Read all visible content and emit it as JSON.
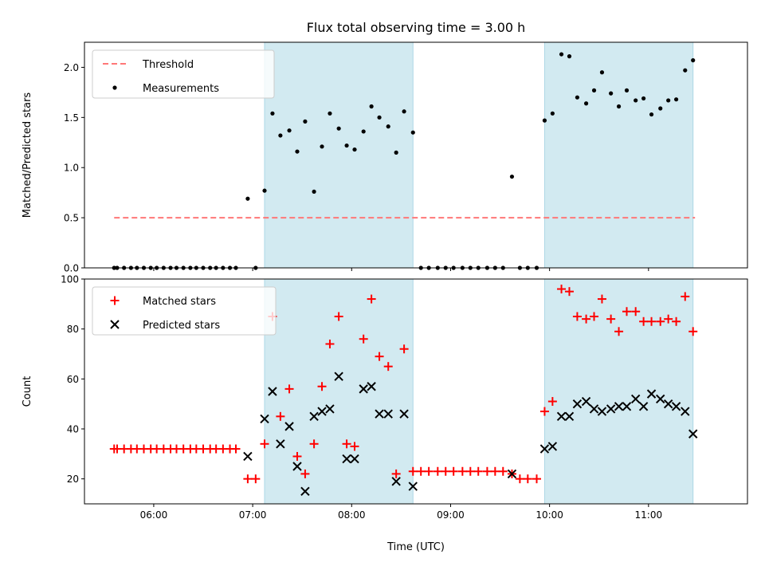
{
  "title": "Flux total observing time = 3.00 h",
  "x_ticks": [
    {
      "label": "06:00",
      "value": 6.0
    },
    {
      "label": "07:00",
      "value": 7.0
    },
    {
      "label": "08:00",
      "value": 8.0
    },
    {
      "label": "09:00",
      "value": 9.0
    },
    {
      "label": "10:00",
      "value": 10.0
    },
    {
      "label": "11:00",
      "value": 11.0
    }
  ],
  "xlabel": "Time (UTC)",
  "chart_data": [
    {
      "type": "scatter",
      "ylabel": "Matched/Predicted stars",
      "xlim": [
        5.3,
        12.0
      ],
      "ylim": [
        0,
        2.25
      ],
      "yticks": [
        "0.0",
        "0.5",
        "1.0",
        "1.5",
        "2.0"
      ],
      "shaded_regions": [
        [
          7.12,
          8.62
        ],
        [
          9.95,
          11.45
        ]
      ],
      "shade_color": "#add8e6",
      "legend": {
        "placement": "top-left",
        "entries": [
          "Threshold",
          "Measurements"
        ]
      },
      "series": [
        {
          "name": "Threshold",
          "style": "dashed-line",
          "color": "#ff7777",
          "x": [
            5.6,
            11.47
          ],
          "y": [
            0.5,
            0.5
          ]
        },
        {
          "name": "Measurements",
          "style": "dot",
          "color": "#000000",
          "x": [
            5.6,
            5.63,
            5.7,
            5.77,
            5.83,
            5.9,
            5.97,
            6.03,
            6.1,
            6.17,
            6.23,
            6.3,
            6.37,
            6.43,
            6.5,
            6.57,
            6.63,
            6.7,
            6.77,
            6.83,
            6.95,
            7.03,
            7.12,
            7.2,
            7.28,
            7.37,
            7.45,
            7.53,
            7.62,
            7.7,
            7.78,
            7.87,
            7.95,
            8.03,
            8.12,
            8.2,
            8.28,
            8.37,
            8.45,
            8.53,
            8.62,
            8.7,
            8.78,
            8.87,
            8.95,
            9.03,
            9.12,
            9.2,
            9.28,
            9.37,
            9.45,
            9.53,
            9.62,
            9.7,
            9.78,
            9.87,
            9.95,
            10.03,
            10.12,
            10.2,
            10.28,
            10.37,
            10.45,
            10.53,
            10.62,
            10.7,
            10.78,
            10.87,
            10.95,
            11.03,
            11.12,
            11.2,
            11.28,
            11.37,
            11.45
          ],
          "y": [
            0,
            0,
            0,
            0,
            0,
            0,
            0,
            0,
            0,
            0,
            0,
            0,
            0,
            0,
            0,
            0,
            0,
            0,
            0,
            0,
            0.69,
            0,
            0.77,
            1.54,
            1.32,
            1.37,
            1.16,
            1.46,
            0.76,
            1.21,
            1.54,
            1.39,
            1.22,
            1.18,
            1.36,
            1.61,
            1.5,
            1.41,
            1.15,
            1.56,
            1.35,
            0,
            0,
            0,
            0,
            0,
            0,
            0,
            0,
            0,
            0,
            0,
            0.91,
            0,
            0,
            0,
            1.47,
            1.54,
            2.13,
            2.11,
            1.7,
            1.64,
            1.77,
            1.95,
            1.74,
            1.61,
            1.77,
            1.67,
            1.69,
            1.53,
            1.59,
            1.67,
            1.68,
            1.97,
            2.07
          ]
        }
      ]
    },
    {
      "type": "scatter",
      "ylabel": "Count",
      "xlim": [
        5.3,
        12.0
      ],
      "ylim": [
        10,
        100
      ],
      "yticks": [
        "20",
        "40",
        "60",
        "80",
        "100"
      ],
      "shaded_regions": [
        [
          7.12,
          8.62
        ],
        [
          9.95,
          11.45
        ]
      ],
      "shade_color": "#add8e6",
      "legend": {
        "placement": "top-left",
        "entries": [
          "Matched stars",
          "Predicted stars"
        ]
      },
      "series": [
        {
          "name": "Matched stars",
          "style": "plus",
          "color": "#ff0000",
          "x": [
            5.6,
            5.63,
            5.7,
            5.77,
            5.83,
            5.9,
            5.97,
            6.03,
            6.1,
            6.17,
            6.23,
            6.3,
            6.37,
            6.43,
            6.5,
            6.57,
            6.63,
            6.7,
            6.77,
            6.83,
            6.95,
            7.03,
            7.12,
            7.2,
            7.28,
            7.37,
            7.45,
            7.53,
            7.62,
            7.7,
            7.78,
            7.87,
            7.95,
            8.03,
            8.12,
            8.2,
            8.28,
            8.37,
            8.45,
            8.53,
            8.62,
            8.7,
            8.78,
            8.87,
            8.95,
            9.03,
            9.12,
            9.2,
            9.28,
            9.37,
            9.45,
            9.53,
            9.62,
            9.7,
            9.78,
            9.87,
            9.95,
            10.03,
            10.12,
            10.2,
            10.28,
            10.37,
            10.45,
            10.53,
            10.62,
            10.7,
            10.78,
            10.87,
            10.95,
            11.03,
            11.12,
            11.2,
            11.28,
            11.37,
            11.45
          ],
          "y": [
            32,
            32,
            32,
            32,
            32,
            32,
            32,
            32,
            32,
            32,
            32,
            32,
            32,
            32,
            32,
            32,
            32,
            32,
            32,
            32,
            20,
            20,
            34,
            85,
            45,
            56,
            29,
            22,
            34,
            57,
            74,
            85,
            34,
            33,
            76,
            92,
            69,
            65,
            22,
            72,
            23,
            23,
            23,
            23,
            23,
            23,
            23,
            23,
            23,
            23,
            23,
            23,
            22,
            20,
            20,
            20,
            47,
            51,
            96,
            95,
            85,
            84,
            85,
            92,
            84,
            79,
            87,
            87,
            83,
            83,
            83,
            84,
            83,
            93,
            79
          ]
        },
        {
          "name": "Predicted stars",
          "style": "x",
          "color": "#000000",
          "x": [
            6.95,
            7.12,
            7.2,
            7.28,
            7.37,
            7.45,
            7.53,
            7.62,
            7.7,
            7.78,
            7.87,
            7.95,
            8.03,
            8.12,
            8.2,
            8.28,
            8.37,
            8.45,
            8.53,
            8.62,
            9.62,
            9.95,
            10.03,
            10.12,
            10.2,
            10.28,
            10.37,
            10.45,
            10.53,
            10.62,
            10.7,
            10.78,
            10.87,
            10.95,
            11.03,
            11.12,
            11.2,
            11.28,
            11.37,
            11.45
          ],
          "y": [
            29,
            44,
            55,
            34,
            41,
            25,
            15,
            45,
            47,
            48,
            61,
            28,
            28,
            56,
            57,
            46,
            46,
            19,
            46,
            17,
            22,
            32,
            33,
            45,
            45,
            50,
            51,
            48,
            47,
            48,
            49,
            49,
            52,
            49,
            54,
            52,
            50,
            49,
            47,
            38
          ]
        }
      ]
    }
  ]
}
